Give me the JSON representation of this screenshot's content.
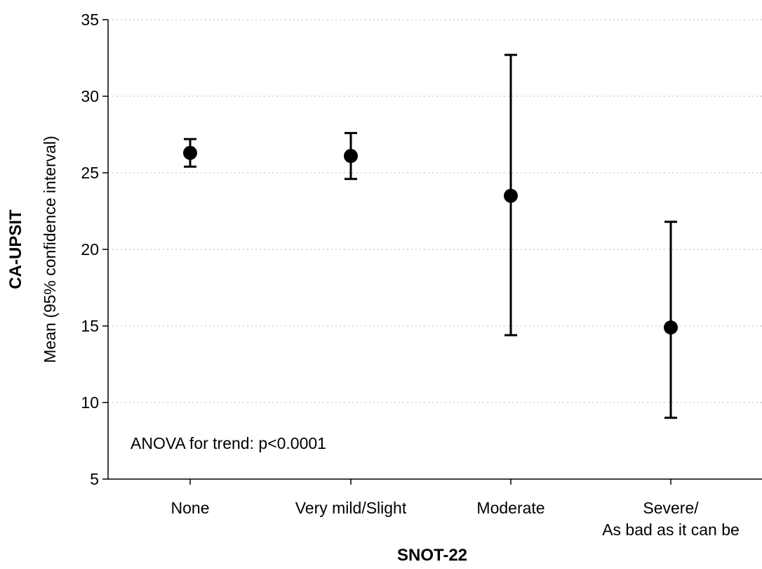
{
  "chart_data": {
    "type": "scatter",
    "categories": [
      "None",
      "Very mild/Slight",
      "Moderate",
      [
        "Severe/",
        "As bad as it can be"
      ]
    ],
    "series": [
      {
        "mean": [
          26.3,
          26.1,
          23.5,
          14.9
        ],
        "ci_lower": [
          25.4,
          24.6,
          14.4,
          9.0
        ],
        "ci_upper": [
          27.2,
          27.6,
          32.7,
          21.8
        ]
      }
    ],
    "ylabel_bold": "CA-UPSIT",
    "ylabel": "Mean (95% confidence interval)",
    "xlabel": "SNOT-22",
    "ylim": [
      5,
      35
    ],
    "yticks": [
      5,
      10,
      15,
      20,
      25,
      30,
      35
    ],
    "grid": "horizontal-dotted",
    "annotation": "ANOVA for trend: p<0.0001",
    "colors": {
      "marker": "#000000",
      "grid": "#c8c8c8",
      "axis": "#000000"
    }
  }
}
